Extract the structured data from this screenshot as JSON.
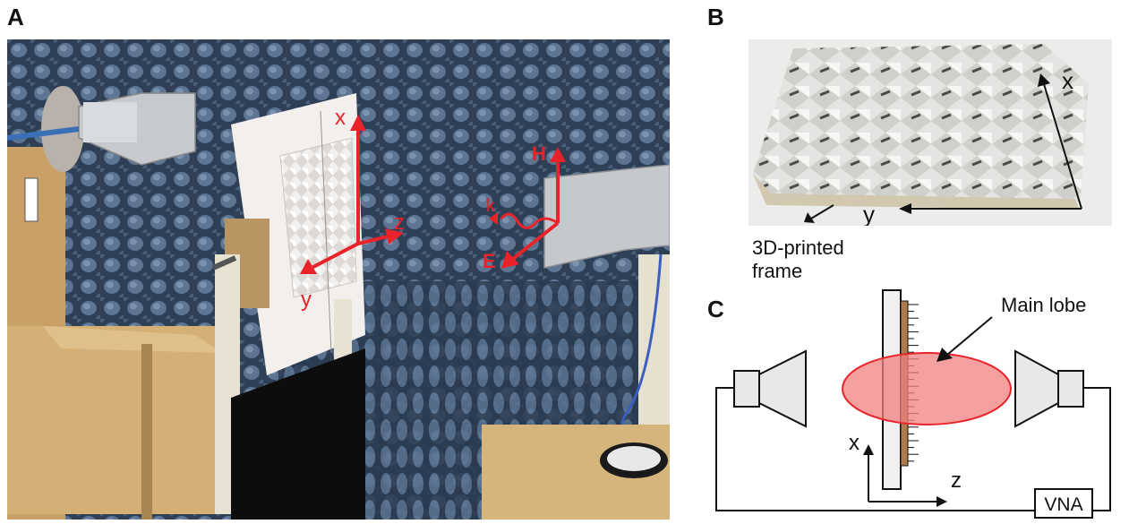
{
  "figure": {
    "panel_a": {
      "letter": "A",
      "axis_labels": {
        "x": "x",
        "y": "y",
        "z": "z"
      },
      "field_labels": {
        "h": "H",
        "k": "k",
        "e": "E"
      },
      "colors": {
        "annotation": "#e8232a",
        "foam": "#3c4e66",
        "wood": "#c9a166"
      }
    },
    "panel_b": {
      "letter": "B",
      "axis_labels": {
        "x": "x",
        "y": "y"
      },
      "frame_label_line1": "3D-printed",
      "frame_label_line2": "frame"
    },
    "panel_c": {
      "letter": "C",
      "main_lobe_label": "Main lobe",
      "axis_labels": {
        "x": "x",
        "z": "z"
      },
      "vna_label": "VNA",
      "colors": {
        "lobe_fill": "#f08080",
        "lobe_stroke": "#e8232a",
        "horn_fill": "#e8e8e8",
        "ruler_wood": "#b07a4a"
      }
    }
  }
}
